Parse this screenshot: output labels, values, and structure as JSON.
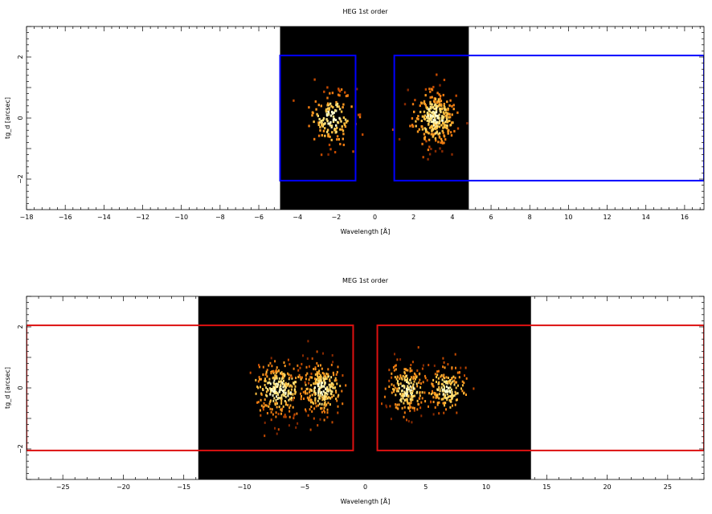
{
  "chart_data": [
    {
      "type": "heatmap",
      "title": "HEG 1st order",
      "xlabel": "Wavelength [Å]",
      "ylabel": "tg_d [arcsec]",
      "xlim": [
        -18,
        17
      ],
      "ylim": [
        -3,
        3
      ],
      "x_ticks": [
        -18,
        -16,
        -14,
        -12,
        -10,
        -8,
        -6,
        -4,
        -2,
        0,
        2,
        4,
        6,
        8,
        10,
        12,
        14,
        16
      ],
      "y_ticks": [
        -2,
        0,
        2
      ],
      "image_extent_x": [
        -4.9,
        4.85
      ],
      "colors": {
        "background": "#000000",
        "region": "#0000ff"
      },
      "regions": [
        {
          "x": [
            -4.9,
            -1.0
          ],
          "y": [
            -2.05,
            2.05
          ]
        },
        {
          "x": [
            1.0,
            17
          ],
          "y": [
            -2.05,
            2.05
          ]
        }
      ],
      "clusters": [
        {
          "center": [
            -2.3,
            0.0
          ],
          "spread": [
            0.8,
            0.55
          ],
          "count": 150
        },
        {
          "center": [
            3.0,
            0.0
          ],
          "spread": [
            0.75,
            0.5
          ],
          "count": 300
        }
      ]
    },
    {
      "type": "heatmap",
      "title": "MEG 1st order",
      "xlabel": "Wavelength [Å]",
      "ylabel": "tg_d [arcsec]",
      "xlim": [
        -28,
        28
      ],
      "ylim": [
        -3,
        3
      ],
      "x_ticks": [
        -25,
        -20,
        -15,
        -10,
        -5,
        0,
        5,
        10,
        15,
        20,
        25
      ],
      "y_ticks": [
        -2,
        0,
        2
      ],
      "image_extent_x": [
        -13.8,
        13.7
      ],
      "colors": {
        "background": "#000000",
        "region": "#dd1111"
      },
      "regions": [
        {
          "x": [
            -28,
            -1.0
          ],
          "y": [
            -2.05,
            2.05
          ]
        },
        {
          "x": [
            1.0,
            28
          ],
          "y": [
            -2.05,
            2.05
          ]
        }
      ],
      "clusters": [
        {
          "center": [
            -7.2,
            -0.05
          ],
          "spread": [
            1.5,
            0.5
          ],
          "count": 300
        },
        {
          "center": [
            -3.6,
            -0.05
          ],
          "spread": [
            1.1,
            0.5
          ],
          "count": 250
        },
        {
          "center": [
            3.4,
            -0.05
          ],
          "spread": [
            1.0,
            0.45
          ],
          "count": 220
        },
        {
          "center": [
            6.7,
            -0.05
          ],
          "spread": [
            1.0,
            0.45
          ],
          "count": 180
        }
      ]
    }
  ]
}
